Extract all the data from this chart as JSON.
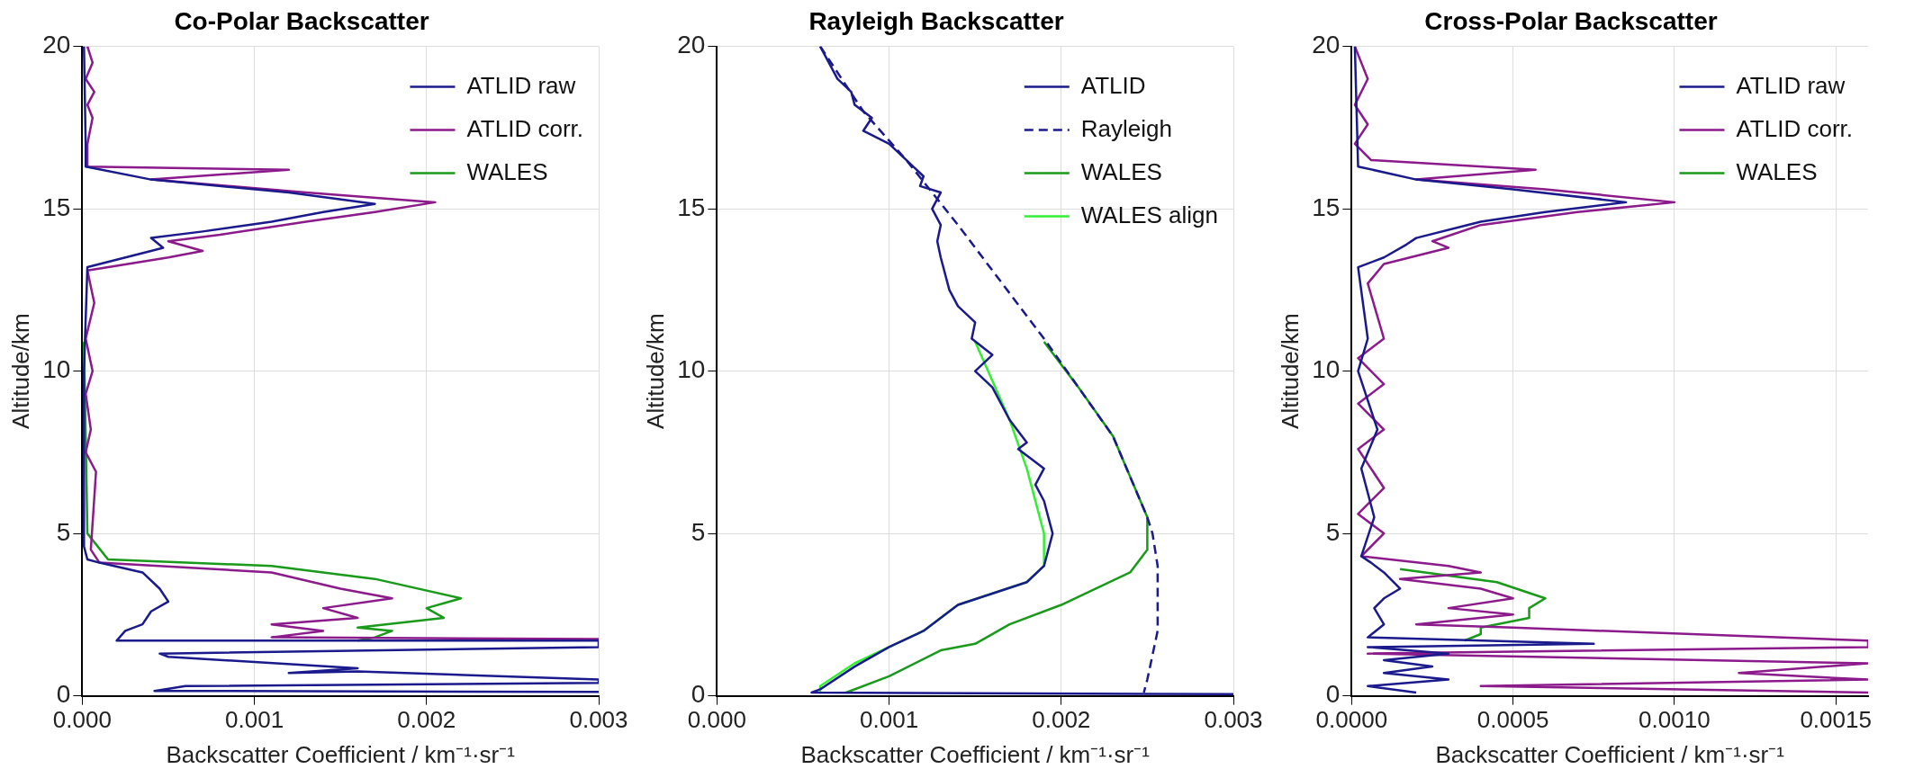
{
  "chart_data": [
    {
      "type": "line",
      "title": "Co-Polar Backscatter",
      "xlabel": "Backscatter Coefficient / km⁻¹·sr⁻¹",
      "ylabel": "Altitude/km",
      "xlim": [
        0,
        0.003
      ],
      "ylim": [
        0,
        20
      ],
      "xticks": [
        {
          "value": 0,
          "label": "0.000"
        },
        {
          "value": 0.001,
          "label": "0.001"
        },
        {
          "value": 0.002,
          "label": "0.002"
        },
        {
          "value": 0.003,
          "label": "0.003"
        }
      ],
      "yticks": [
        0,
        5,
        10,
        15,
        20
      ],
      "grid": true,
      "legend": "top right",
      "marker": "none",
      "series": [
        {
          "name": "ATLID raw",
          "color": "#1a1a8c",
          "x": [
            1e-05,
            2e-05,
            2e-05,
            0.0004,
            0.0012,
            0.0017,
            0.0014,
            0.0011,
            0.0007,
            0.0004,
            0.00047,
            0.0004,
            3e-05,
            1e-05,
            1e-05,
            3e-05,
            0.0001,
            0.00035,
            0.00045,
            0.0005,
            0.0004,
            0.00035,
            0.00025,
            0.0002,
            0.003,
            0.003,
            0.00045,
            0.0005,
            0.0016,
            0.0012,
            0.0016,
            0.003,
            0.003,
            0.0006,
            0.00042,
            0.003
          ],
          "values": [
            20,
            17,
            16.3,
            15.9,
            15.5,
            15.15,
            14.9,
            14.6,
            14.3,
            14.1,
            13.8,
            13.7,
            13.2,
            10,
            4.6,
            4.2,
            4.1,
            3.8,
            3.3,
            2.9,
            2.6,
            2.2,
            2.0,
            1.7,
            1.7,
            1.5,
            1.3,
            1.2,
            0.85,
            0.7,
            0.75,
            0.5,
            0.4,
            0.3,
            0.15,
            0.12
          ]
        },
        {
          "name": "ATLID corr.",
          "color": "#8b1a8b",
          "x": [
            3e-05,
            6e-05,
            2e-05,
            7e-05,
            3e-05,
            6e-05,
            3e-05,
            3e-05,
            0.0012,
            0.0004,
            0.0013,
            0.00205,
            0.0017,
            0.0013,
            0.0008,
            0.0005,
            0.0007,
            0.0005,
            3e-05,
            7e-05,
            2e-05,
            6e-05,
            2e-05,
            5e-05,
            2e-05,
            8e-05,
            5e-05,
            0.0001,
            0.0011,
            0.0015,
            0.0018,
            0.0014,
            0.0016,
            0.0011,
            0.0014,
            0.0011,
            0.003
          ],
          "values": [
            20,
            19.5,
            19,
            18.6,
            18.2,
            17.8,
            17,
            16.3,
            16.2,
            15.9,
            15.5,
            15.2,
            14.9,
            14.6,
            14.2,
            14.0,
            13.7,
            13.5,
            13.1,
            12.1,
            11,
            10,
            9.3,
            8.2,
            7.5,
            6.9,
            4.5,
            4.1,
            3.8,
            3.3,
            3.0,
            2.7,
            2.4,
            2.2,
            2.0,
            1.8,
            1.75
          ]
        },
        {
          "name": "WALES",
          "color": "#1a9a1a",
          "x": [
            1e-05,
            2e-05,
            3e-05,
            0.00015,
            0.0011,
            0.0017,
            0.0022,
            0.002,
            0.0021,
            0.0016,
            0.0018,
            0.0017,
            0.0016
          ],
          "values": [
            10.9,
            8,
            5,
            4.2,
            4.0,
            3.6,
            3.0,
            2.7,
            2.4,
            2.1,
            2.0,
            1.8,
            1.7
          ]
        }
      ]
    },
    {
      "type": "line",
      "title": "Rayleigh Backscatter",
      "xlabel": "Backscatter Coefficient / km⁻¹·sr⁻¹",
      "ylabel": "Altitude/km",
      "xlim": [
        0,
        0.003
      ],
      "ylim": [
        0,
        20
      ],
      "xticks": [
        {
          "value": 0,
          "label": "0.000"
        },
        {
          "value": 0.001,
          "label": "0.001"
        },
        {
          "value": 0.002,
          "label": "0.002"
        },
        {
          "value": 0.003,
          "label": "0.003"
        }
      ],
      "yticks": [
        0,
        5,
        10,
        15,
        20
      ],
      "grid": true,
      "legend": "top right",
      "marker": "none",
      "series": [
        {
          "name": "ATLID",
          "color": "#1a1a8c",
          "x": [
            0.0006,
            0.00065,
            0.0007,
            0.00078,
            0.0008,
            0.0009,
            0.00085,
            0.001,
            0.0011,
            0.0012,
            0.00118,
            0.0013,
            0.00125,
            0.0013,
            0.00128,
            0.0013,
            0.00135,
            0.0014,
            0.0015,
            0.00148,
            0.0016,
            0.0015,
            0.0016,
            0.0017,
            0.0018,
            0.00175,
            0.0019,
            0.00185,
            0.0019,
            0.00195,
            0.0019,
            0.0018,
            0.0014,
            0.0012,
            0.001,
            0.0008,
            0.0006,
            0.00055,
            0.003
          ],
          "values": [
            20,
            19.5,
            19,
            18.6,
            18.2,
            17.8,
            17.4,
            17,
            16.5,
            16,
            15.7,
            15.5,
            15,
            14.5,
            14,
            13.5,
            12.5,
            12,
            11.5,
            11,
            10.5,
            10,
            9.5,
            8.5,
            7.8,
            7.6,
            7,
            6.5,
            6,
            5,
            4,
            3.5,
            2.8,
            2.0,
            1.5,
            0.9,
            0.2,
            0.1,
            0.05
          ]
        },
        {
          "name": "Rayleigh",
          "color": "#1a1a8c",
          "line_style": "dashed",
          "x": [
            0.0006,
            0.00085,
            0.0011,
            0.0014,
            0.0019,
            0.0023,
            0.0025,
            0.00253,
            0.00256,
            0.00256,
            0.0025,
            0.00248
          ],
          "values": [
            20,
            18,
            16.5,
            14.5,
            11,
            8,
            5.5,
            5,
            4,
            2,
            0.5,
            0.1
          ]
        },
        {
          "name": "WALES",
          "color": "#1a9a1a",
          "x": [
            0.0019,
            0.0021,
            0.0023,
            0.0025,
            0.0025,
            0.0024,
            0.002,
            0.0017,
            0.0015,
            0.0013,
            0.001,
            0.00075
          ],
          "values": [
            10.9,
            9.5,
            8,
            5.5,
            4.5,
            3.8,
            2.8,
            2.2,
            1.6,
            1.4,
            0.6,
            0.1
          ]
        },
        {
          "name": "WALES align",
          "color": "#33ee33",
          "x": [
            0.0015,
            0.0017,
            0.0018,
            0.0019,
            0.0019,
            0.0018,
            0.0014,
            0.0012,
            0.001,
            0.0008,
            0.0006,
            0.0006
          ],
          "values": [
            10.9,
            8.5,
            7,
            5,
            4,
            3.5,
            2.8,
            2,
            1.5,
            1.0,
            0.3,
            0.1
          ]
        }
      ]
    },
    {
      "type": "line",
      "title": "Cross-Polar Backscatter",
      "xlabel": "Backscatter Coefficient / km⁻¹·sr⁻¹",
      "ylabel": "Altitude/km",
      "xlim": [
        0,
        0.0016
      ],
      "ylim": [
        0,
        20
      ],
      "xticks": [
        {
          "value": 0,
          "label": "0.0000"
        },
        {
          "value": 0.0005,
          "label": "0.0005"
        },
        {
          "value": 0.001,
          "label": "0.0010"
        },
        {
          "value": 0.0015,
          "label": "0.0015"
        }
      ],
      "yticks": [
        0,
        5,
        10,
        15,
        20
      ],
      "grid": true,
      "legend": "top right",
      "marker": "none",
      "series": [
        {
          "name": "ATLID raw",
          "color": "#1a1a8c",
          "x": [
            1e-05,
            2e-05,
            0.0002,
            0.0005,
            0.00085,
            0.0006,
            0.0004,
            0.0002,
            0.00017,
            0.0001,
            2e-05,
            5e-05,
            2e-05,
            8e-05,
            3e-05,
            7e-05,
            3e-05,
            6e-05,
            0.0001,
            0.00015,
            0.0001,
            7e-05,
            0.0001,
            5e-05,
            0.00075,
            5e-05,
            0.0003,
            0.0001,
            0.00025,
            0.0001,
            0.0003,
            5e-05,
            0.0002
          ],
          "values": [
            20,
            16.3,
            15.9,
            15.6,
            15.2,
            14.9,
            14.6,
            14.1,
            13.9,
            13.5,
            13.2,
            11,
            10,
            8.2,
            7,
            5.5,
            4.3,
            4.1,
            3.8,
            3.3,
            3.0,
            2.7,
            2.2,
            1.8,
            1.6,
            1.5,
            1.3,
            1.1,
            0.9,
            0.7,
            0.5,
            0.3,
            0.1
          ]
        },
        {
          "name": "ATLID corr.",
          "color": "#8b1a8b",
          "x": [
            1e-05,
            5e-05,
            1e-05,
            5e-05,
            1e-05,
            6e-05,
            0.00057,
            0.0002,
            0.0006,
            0.001,
            0.0007,
            0.0004,
            0.00025,
            0.0003,
            0.0001,
            5e-05,
            0.0001,
            2e-05,
            0.0001,
            2e-05,
            0.0001,
            2e-05,
            0.0001,
            2e-05,
            0.0001,
            3e-05,
            0.0003,
            0.0004,
            0.00015,
            0.0004,
            0.0005,
            0.0003,
            0.0005,
            0.0002,
            0.0005,
            0.0016,
            0.0016,
            5e-05,
            0.0016,
            0.0012,
            0.0016,
            0.0004,
            0.0016
          ],
          "values": [
            20,
            19,
            18.2,
            17.6,
            17,
            16.5,
            16.2,
            15.9,
            15.6,
            15.2,
            14.9,
            14.5,
            14.0,
            13.8,
            13.3,
            12.7,
            11,
            10.4,
            9.6,
            9.0,
            8.2,
            7.6,
            6.4,
            5.6,
            5.0,
            4.3,
            4.0,
            3.8,
            3.6,
            3.3,
            3.0,
            2.7,
            2.5,
            2.2,
            2.1,
            1.7,
            1.5,
            1.3,
            1.0,
            0.7,
            0.5,
            0.3,
            0.1
          ]
        },
        {
          "name": "WALES",
          "color": "#1a9a1a",
          "x": [
            0.00015,
            0.00045,
            0.0006,
            0.00055,
            0.00055,
            0.0004,
            0.0004,
            0.00035
          ],
          "values": [
            3.9,
            3.5,
            3.0,
            2.7,
            2.4,
            2.1,
            1.9,
            1.7
          ]
        }
      ]
    }
  ]
}
